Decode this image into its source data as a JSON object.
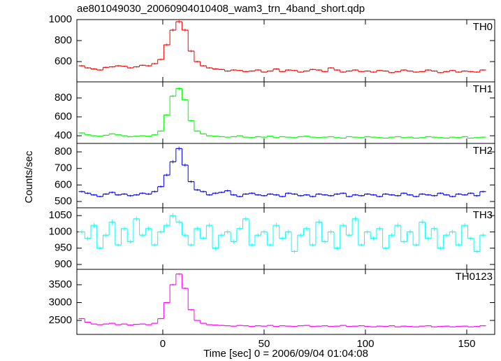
{
  "chart_data": [
    {
      "type": "line",
      "title": "ae801049030_20060904010408_wam3_trn_4band_short.qdp",
      "x": [
        -40,
        -37,
        -34,
        -31,
        -28,
        -25,
        -22,
        -19,
        -16,
        -13,
        -10,
        -7,
        -4,
        -1,
        2,
        5,
        8,
        11,
        14,
        17,
        20,
        23,
        26,
        29,
        32,
        35,
        38,
        41,
        44,
        47,
        50,
        53,
        56,
        59,
        62,
        65,
        68,
        71,
        74,
        77,
        80,
        83,
        86,
        89,
        92,
        95,
        98,
        101,
        104,
        107,
        110,
        113,
        116,
        119,
        122,
        125,
        128,
        131,
        134,
        137,
        140,
        143,
        146,
        149,
        152,
        155,
        158
      ],
      "xlim": [
        -42.4,
        163.8
      ],
      "ylim": [
        407,
        1000
      ],
      "yticks": [
        600,
        800,
        1000
      ],
      "series": [
        {
          "name": "TH0",
          "color": "#ff0000",
          "values": [
            560,
            540,
            530,
            520,
            545,
            550,
            560,
            555,
            540,
            550,
            565,
            560,
            580,
            620,
            760,
            900,
            980,
            900,
            700,
            600,
            560,
            540,
            530,
            525,
            510,
            520,
            515,
            505,
            510,
            520,
            500,
            510,
            530,
            505,
            520,
            515,
            500,
            510,
            525,
            520,
            505,
            540,
            520,
            500,
            510,
            520,
            505,
            510,
            500,
            515,
            510,
            495,
            505,
            520,
            510,
            500,
            505,
            520,
            510,
            495,
            505,
            515,
            500,
            510,
            505,
            500,
            520
          ]
        }
      ]
    },
    {
      "type": "line",
      "x": [
        -40,
        -37,
        -34,
        -31,
        -28,
        -25,
        -22,
        -19,
        -16,
        -13,
        -10,
        -7,
        -4,
        -1,
        2,
        5,
        8,
        11,
        14,
        17,
        20,
        23,
        26,
        29,
        32,
        35,
        38,
        41,
        44,
        47,
        50,
        53,
        56,
        59,
        62,
        65,
        68,
        71,
        74,
        77,
        80,
        83,
        86,
        89,
        92,
        95,
        98,
        101,
        104,
        107,
        110,
        113,
        116,
        119,
        122,
        125,
        128,
        131,
        134,
        137,
        140,
        143,
        146,
        149,
        152,
        155,
        158
      ],
      "xlim": [
        -42.4,
        163.8
      ],
      "ylim": [
        319,
        970
      ],
      "yticks": [
        400,
        600,
        800
      ],
      "series": [
        {
          "name": "TH1",
          "color": "#00ff00",
          "values": [
            430,
            410,
            400,
            395,
            405,
            420,
            410,
            400,
            390,
            395,
            400,
            395,
            410,
            450,
            620,
            820,
            900,
            780,
            560,
            450,
            420,
            400,
            395,
            390,
            385,
            390,
            400,
            385,
            380,
            390,
            385,
            395,
            380,
            390,
            385,
            380,
            390,
            395,
            385,
            380,
            385,
            390,
            380,
            375,
            390,
            385,
            380,
            390,
            385,
            380,
            375,
            385,
            390,
            380,
            385,
            375,
            380,
            390,
            385,
            380,
            375,
            385,
            380,
            390,
            375,
            380,
            385
          ]
        }
      ]
    },
    {
      "type": "line",
      "ylabel": "Counts/sec",
      "x": [
        -40,
        -37,
        -34,
        -31,
        -28,
        -25,
        -22,
        -19,
        -16,
        -13,
        -10,
        -7,
        -4,
        -1,
        2,
        5,
        8,
        11,
        14,
        17,
        20,
        23,
        26,
        29,
        32,
        35,
        38,
        41,
        44,
        47,
        50,
        53,
        56,
        59,
        62,
        65,
        68,
        71,
        74,
        77,
        80,
        83,
        86,
        89,
        92,
        95,
        98,
        101,
        104,
        107,
        110,
        113,
        116,
        119,
        122,
        125,
        128,
        131,
        134,
        137,
        140,
        143,
        146,
        149,
        152,
        155,
        158
      ],
      "xlim": [
        -42.4,
        163.8
      ],
      "ylim": [
        462,
        851
      ],
      "yticks": [
        500,
        600,
        700,
        800
      ],
      "series": [
        {
          "name": "TH2",
          "color": "#0000ff",
          "values": [
            560,
            550,
            540,
            530,
            545,
            555,
            540,
            545,
            535,
            540,
            550,
            545,
            560,
            590,
            660,
            740,
            820,
            720,
            620,
            570,
            560,
            540,
            550,
            555,
            565,
            540,
            530,
            545,
            550,
            540,
            535,
            545,
            540,
            530,
            550,
            545,
            535,
            540,
            530,
            545,
            540,
            535,
            545,
            550,
            530,
            540,
            535,
            545,
            540,
            530,
            545,
            540,
            535,
            550,
            540,
            530,
            545,
            540,
            535,
            550,
            540,
            530,
            545,
            540,
            550,
            535,
            560
          ]
        }
      ]
    },
    {
      "type": "line",
      "x": [
        -40,
        -37,
        -34,
        -31,
        -28,
        -25,
        -22,
        -19,
        -16,
        -13,
        -10,
        -7,
        -4,
        -1,
        2,
        5,
        8,
        11,
        14,
        17,
        20,
        23,
        26,
        29,
        32,
        35,
        38,
        41,
        44,
        47,
        50,
        53,
        56,
        59,
        62,
        65,
        68,
        71,
        74,
        77,
        80,
        83,
        86,
        89,
        92,
        95,
        98,
        101,
        104,
        107,
        110,
        113,
        116,
        119,
        122,
        125,
        128,
        131,
        134,
        137,
        140,
        143,
        146,
        149,
        152,
        155,
        158
      ],
      "xlim": [
        -42.4,
        163.8
      ],
      "ylim": [
        885,
        1074
      ],
      "yticks": [
        900,
        950,
        1000,
        1050
      ],
      "series": [
        {
          "name": "TH3",
          "color": "#00ffff",
          "values": [
            1000,
            980,
            1020,
            950,
            990,
            1030,
            960,
            1010,
            970,
            1040,
            990,
            1010,
            960,
            1000,
            1020,
            1050,
            1030,
            990,
            960,
            1010,
            980,
            1020,
            950,
            990,
            1000,
            970,
            1010,
            1040,
            960,
            990,
            1000,
            960,
            1020,
            980,
            1000,
            940,
            990,
            1010,
            960,
            1030,
            970,
            1000,
            950,
            1020,
            990,
            1040,
            960,
            1000,
            980,
            1010,
            950,
            990,
            1020,
            970,
            1000,
            960,
            1030,
            980,
            1010,
            950,
            990,
            1000,
            960,
            1020,
            980,
            940,
            990
          ]
        }
      ]
    },
    {
      "type": "line",
      "xlabel": "Time [sec] 0 = 2006/09/04 01:04:08",
      "x": [
        -40,
        -37,
        -34,
        -31,
        -28,
        -25,
        -22,
        -19,
        -16,
        -13,
        -10,
        -7,
        -4,
        -1,
        2,
        5,
        8,
        11,
        14,
        17,
        20,
        23,
        26,
        29,
        32,
        35,
        38,
        41,
        44,
        47,
        50,
        53,
        56,
        59,
        62,
        65,
        68,
        71,
        74,
        77,
        80,
        83,
        86,
        89,
        92,
        95,
        98,
        101,
        104,
        107,
        110,
        113,
        116,
        119,
        122,
        125,
        128,
        131,
        134,
        137,
        140,
        143,
        146,
        149,
        152,
        155,
        158
      ],
      "xlim": [
        -42.4,
        163.8
      ],
      "xticks": [
        0,
        50,
        100,
        150
      ],
      "ylim": [
        2108,
        3931
      ],
      "yticks": [
        2500,
        3000,
        3500
      ],
      "series": [
        {
          "name": "TH0123",
          "color": "#ff00ff",
          "values": [
            2550,
            2450,
            2400,
            2380,
            2400,
            2420,
            2380,
            2400,
            2370,
            2390,
            2400,
            2380,
            2420,
            2550,
            3000,
            3500,
            3800,
            3400,
            2800,
            2500,
            2420,
            2380,
            2370,
            2360,
            2350,
            2340,
            2360,
            2350,
            2330,
            2350,
            2340,
            2360,
            2330,
            2350,
            2340,
            2330,
            2350,
            2360,
            2330,
            2340,
            2350,
            2330,
            2340,
            2360,
            2330,
            2340,
            2350,
            2330,
            2320,
            2340,
            2330,
            2350,
            2320,
            2340,
            2330,
            2320,
            2340,
            2350,
            2320,
            2330,
            2340,
            2320,
            2330,
            2340,
            2320,
            2330,
            2350
          ]
        }
      ]
    }
  ]
}
